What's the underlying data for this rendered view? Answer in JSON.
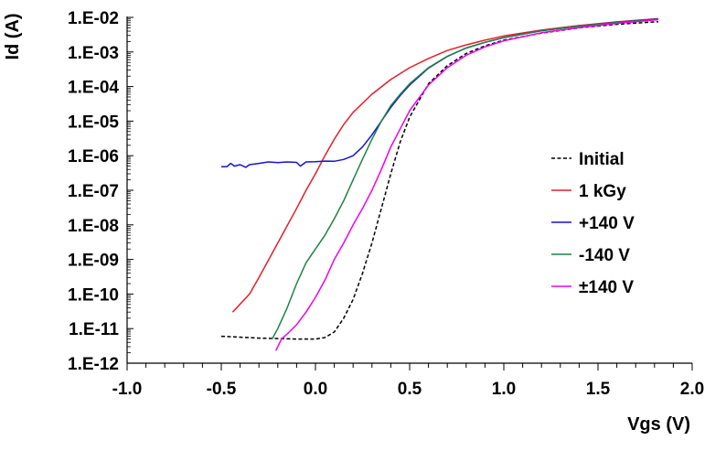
{
  "chart_data": {
    "type": "line",
    "title": "",
    "xlabel": "Vgs (V)",
    "ylabel": "Id (A)",
    "xlim": [
      -1.0,
      2.0
    ],
    "ylim": [
      1e-12,
      0.01
    ],
    "yscale": "log",
    "x_ticks": [
      {
        "value": -1.0,
        "label": "-1.0"
      },
      {
        "value": -0.5,
        "label": "-0.5"
      },
      {
        "value": 0.0,
        "label": "0.0"
      },
      {
        "value": 0.5,
        "label": "0.5"
      },
      {
        "value": 1.0,
        "label": "1.0"
      },
      {
        "value": 1.5,
        "label": "1.5"
      },
      {
        "value": 2.0,
        "label": "2.0"
      }
    ],
    "y_ticks": [
      {
        "value": 1e-12,
        "label": "1.E-12"
      },
      {
        "value": 1e-11,
        "label": "1.E-11"
      },
      {
        "value": 1e-10,
        "label": "1.E-10"
      },
      {
        "value": 1e-09,
        "label": "1.E-09"
      },
      {
        "value": 1e-08,
        "label": "1.E-08"
      },
      {
        "value": 1e-07,
        "label": "1.E-07"
      },
      {
        "value": 1e-06,
        "label": "1.E-06"
      },
      {
        "value": 1e-05,
        "label": "1.E-05"
      },
      {
        "value": 0.0001,
        "label": "1.E-04"
      },
      {
        "value": 0.001,
        "label": "1.E-03"
      },
      {
        "value": 0.01,
        "label": "1.E-02"
      }
    ],
    "grid": false,
    "legend_position": "right",
    "series": [
      {
        "name": "Initial",
        "color": "#000000",
        "dashed": true,
        "points": [
          [
            -0.5,
            6e-12
          ],
          [
            -0.3,
            5.3e-12
          ],
          [
            -0.1,
            5e-12
          ],
          [
            0.0,
            5e-12
          ],
          [
            0.05,
            5.5e-12
          ],
          [
            0.1,
            8e-12
          ],
          [
            0.15,
            2e-11
          ],
          [
            0.2,
            7e-11
          ],
          [
            0.25,
            4e-10
          ],
          [
            0.3,
            3e-09
          ],
          [
            0.35,
            3e-08
          ],
          [
            0.4,
            3e-07
          ],
          [
            0.45,
            2.5e-06
          ],
          [
            0.5,
            1.3e-05
          ],
          [
            0.6,
            0.00012
          ],
          [
            0.7,
            0.0004
          ],
          [
            0.8,
            0.0009
          ],
          [
            0.9,
            0.0015
          ],
          [
            1.0,
            0.0022
          ],
          [
            1.2,
            0.0035
          ],
          [
            1.4,
            0.005
          ],
          [
            1.6,
            0.0063
          ],
          [
            1.82,
            0.0075
          ]
        ]
      },
      {
        "name": "1 kGy",
        "color": "#e61e28",
        "dashed": false,
        "points": [
          [
            -0.44,
            3e-11
          ],
          [
            -0.35,
            1e-10
          ],
          [
            -0.3,
            3e-10
          ],
          [
            -0.2,
            3e-09
          ],
          [
            -0.1,
            3e-08
          ],
          [
            -0.05,
            1e-07
          ],
          [
            0.0,
            3e-07
          ],
          [
            0.05,
            1e-06
          ],
          [
            0.1,
            3e-06
          ],
          [
            0.15,
            8e-06
          ],
          [
            0.2,
            1.8e-05
          ],
          [
            0.3,
            6e-05
          ],
          [
            0.4,
            0.00016
          ],
          [
            0.5,
            0.00035
          ],
          [
            0.6,
            0.00065
          ],
          [
            0.7,
            0.0011
          ],
          [
            0.8,
            0.0016
          ],
          [
            0.9,
            0.0022
          ],
          [
            1.0,
            0.0029
          ],
          [
            1.2,
            0.0043
          ],
          [
            1.4,
            0.0058
          ],
          [
            1.6,
            0.0074
          ],
          [
            1.82,
            0.0092
          ]
        ]
      },
      {
        "name": "+140 V",
        "color": "#1414d2",
        "dashed": false,
        "points": [
          [
            -0.5,
            4.8e-07
          ],
          [
            -0.47,
            4.8e-07
          ],
          [
            -0.45,
            6e-07
          ],
          [
            -0.43,
            5e-07
          ],
          [
            -0.4,
            5.5e-07
          ],
          [
            -0.37,
            4.6e-07
          ],
          [
            -0.35,
            5.5e-07
          ],
          [
            -0.3,
            6e-07
          ],
          [
            -0.25,
            6.6e-07
          ],
          [
            -0.2,
            6.3e-07
          ],
          [
            -0.15,
            6.6e-07
          ],
          [
            -0.1,
            6.4e-07
          ],
          [
            -0.08,
            5e-07
          ],
          [
            -0.05,
            6.6e-07
          ],
          [
            0.0,
            6.7e-07
          ],
          [
            0.05,
            7e-07
          ],
          [
            0.1,
            6.9e-07
          ],
          [
            0.15,
            7.8e-07
          ],
          [
            0.2,
            1e-06
          ],
          [
            0.25,
            1.8e-06
          ],
          [
            0.3,
            4e-06
          ],
          [
            0.35,
            1e-05
          ],
          [
            0.4,
            2.5e-05
          ],
          [
            0.45,
            5.5e-05
          ],
          [
            0.5,
            0.00011
          ],
          [
            0.6,
            0.00034
          ],
          [
            0.7,
            0.00074
          ],
          [
            0.8,
            0.0013
          ],
          [
            0.9,
            0.0019
          ],
          [
            1.0,
            0.0026
          ],
          [
            1.2,
            0.0041
          ],
          [
            1.4,
            0.0056
          ],
          [
            1.6,
            0.0072
          ],
          [
            1.82,
            0.009
          ]
        ]
      },
      {
        "name": "-140 V",
        "color": "#1e8246",
        "dashed": false,
        "points": [
          [
            -0.23,
            5e-12
          ],
          [
            -0.2,
            1e-11
          ],
          [
            -0.15,
            4e-11
          ],
          [
            -0.1,
            2e-10
          ],
          [
            -0.05,
            8e-10
          ],
          [
            0.0,
            2e-09
          ],
          [
            0.05,
            5e-09
          ],
          [
            0.1,
            1.5e-08
          ],
          [
            0.15,
            5e-08
          ],
          [
            0.2,
            2e-07
          ],
          [
            0.25,
            8e-07
          ],
          [
            0.3,
            3e-06
          ],
          [
            0.35,
            1e-05
          ],
          [
            0.4,
            2.8e-05
          ],
          [
            0.45,
            6e-05
          ],
          [
            0.5,
            0.00012
          ],
          [
            0.6,
            0.00035
          ],
          [
            0.7,
            0.00075
          ],
          [
            0.8,
            0.0013
          ],
          [
            0.9,
            0.0019
          ],
          [
            1.0,
            0.0026
          ],
          [
            1.2,
            0.0041
          ],
          [
            1.4,
            0.0056
          ],
          [
            1.6,
            0.0071
          ],
          [
            1.82,
            0.0088
          ]
        ]
      },
      {
        "name": "±140 V",
        "color": "#f000f0",
        "dashed": false,
        "points": [
          [
            -0.21,
            2.3e-12
          ],
          [
            -0.18,
            5e-12
          ],
          [
            -0.15,
            7e-12
          ],
          [
            -0.1,
            1.3e-11
          ],
          [
            -0.05,
            3e-11
          ],
          [
            0.0,
            8e-11
          ],
          [
            0.05,
            2.5e-10
          ],
          [
            0.1,
            1e-09
          ],
          [
            0.15,
            3e-09
          ],
          [
            0.2,
            1e-08
          ],
          [
            0.25,
            3e-08
          ],
          [
            0.3,
            1e-07
          ],
          [
            0.35,
            4e-07
          ],
          [
            0.4,
            1.8e-06
          ],
          [
            0.45,
            6e-06
          ],
          [
            0.5,
            2e-05
          ],
          [
            0.6,
            0.00011
          ],
          [
            0.7,
            0.00035
          ],
          [
            0.8,
            0.0008
          ],
          [
            0.9,
            0.0014
          ],
          [
            1.0,
            0.0021
          ],
          [
            1.2,
            0.0036
          ],
          [
            1.4,
            0.0051
          ],
          [
            1.6,
            0.0067
          ],
          [
            1.82,
            0.0086
          ]
        ]
      }
    ]
  }
}
